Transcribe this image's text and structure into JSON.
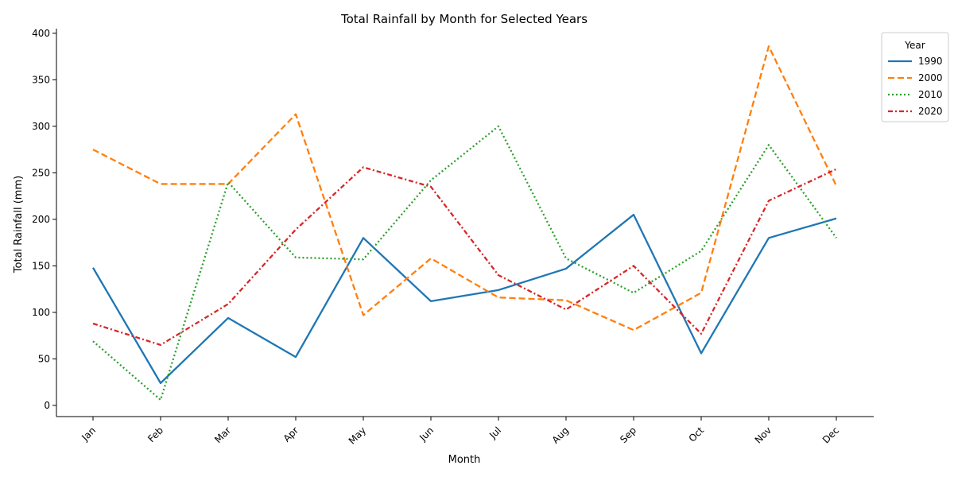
{
  "chart_data": {
    "type": "line",
    "title": "Total Rainfall by Month for Selected Years",
    "xlabel": "Month",
    "ylabel": "Total Rainfall (mm)",
    "categories": [
      "Jan",
      "Feb",
      "Mar",
      "Apr",
      "May",
      "Jun",
      "Jul",
      "Aug",
      "Sep",
      "Oct",
      "Nov",
      "Dec"
    ],
    "ylim": [
      -12,
      405
    ],
    "yticks": [
      0,
      50,
      100,
      150,
      200,
      250,
      300,
      350,
      400
    ],
    "grid": false,
    "legend": {
      "title": "Year",
      "placement": "outside-top-right"
    },
    "series": [
      {
        "name": "1990",
        "color": "#1f77b4",
        "dash": "solid",
        "values": [
          148,
          24,
          94,
          52,
          180,
          112,
          124,
          147,
          205,
          56,
          180,
          201
        ]
      },
      {
        "name": "2000",
        "color": "#ff7f0e",
        "dash": "dashed",
        "values": [
          275,
          238,
          238,
          313,
          97,
          158,
          116,
          113,
          81,
          121,
          386,
          236
        ]
      },
      {
        "name": "2010",
        "color": "#2ca02c",
        "dash": "dotted",
        "values": [
          69,
          6,
          240,
          159,
          157,
          242,
          300,
          158,
          121,
          166,
          280,
          180
        ]
      },
      {
        "name": "2020",
        "color": "#d62728",
        "dash": "dashdot",
        "values": [
          88,
          65,
          109,
          189,
          256,
          235,
          140,
          103,
          150,
          77,
          220,
          254
        ]
      }
    ]
  }
}
